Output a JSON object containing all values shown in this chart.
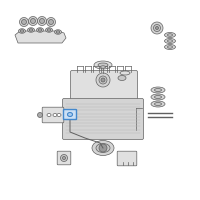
{
  "bg_color": "#ffffff",
  "line_color": "#606060",
  "highlight_color": "#4488cc",
  "figsize": [
    2.0,
    2.0
  ],
  "dpi": 100,
  "lw": 0.5
}
